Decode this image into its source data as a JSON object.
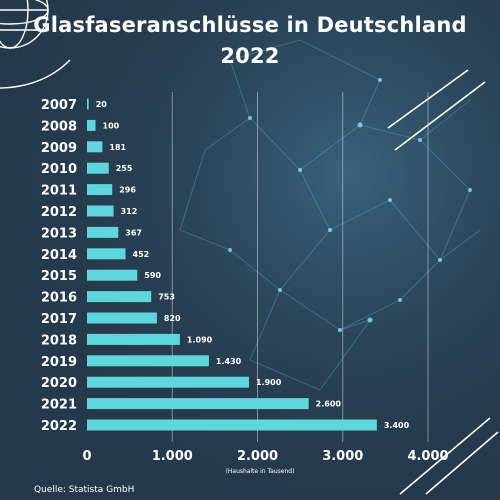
{
  "title": "Glasfaseranschlüsse in Deutschland 2022",
  "source": "Quelle: Statista GmbH",
  "colors": {
    "background": "#25394c",
    "bar": "#5fd6dc",
    "text": "#ffffff",
    "grid": "#c9d6df"
  },
  "chart_data": {
    "type": "bar",
    "orientation": "horizontal",
    "title": "Glasfaseranschlüsse in Deutschland 2022",
    "xlabel": "(Haushalte in Tausend)",
    "ylabel": "",
    "categories": [
      "2007",
      "2008",
      "2009",
      "2010",
      "2011",
      "2012",
      "2013",
      "2014",
      "2015",
      "2016",
      "2017",
      "2018",
      "2019",
      "2020",
      "2021",
      "2022"
    ],
    "values": [
      20,
      100,
      181,
      255,
      296,
      312,
      367,
      452,
      590,
      753,
      820,
      1090,
      1430,
      1900,
      2600,
      3400
    ],
    "value_labels": [
      "20",
      "100",
      "181",
      "255",
      "296",
      "312",
      "367",
      "452",
      "590",
      "753",
      "820",
      "1.090",
      "1.430",
      "1.900",
      "2.600",
      "3.400"
    ],
    "xlim": [
      0,
      4000
    ],
    "x_ticks": [
      0,
      1000,
      2000,
      3000,
      4000
    ],
    "x_tick_labels": [
      "0",
      "1.000",
      "2.000",
      "3.000",
      "4.000"
    ],
    "grid": true
  }
}
